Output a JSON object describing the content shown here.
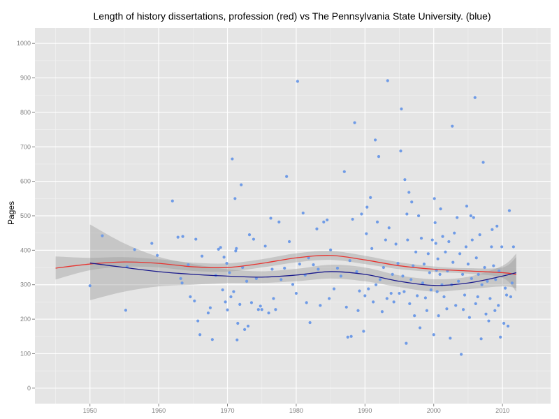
{
  "chart_data": {
    "type": "scatter",
    "title": "Length of history dissertations, profession (red) vs The Pennsylvania State University. (blue)",
    "xlabel": "",
    "ylabel": "Pages",
    "xlim": [
      1942,
      2017
    ],
    "ylim": [
      -45,
      1045
    ],
    "x_ticks": [
      1950,
      1960,
      1970,
      1980,
      1990,
      2000,
      2010
    ],
    "y_ticks": [
      0,
      100,
      200,
      300,
      400,
      500,
      600,
      700,
      800,
      900,
      1000
    ],
    "grid": true,
    "legend": "none",
    "colors": {
      "panel": "#e5e5e5",
      "grid_major": "#ffffff",
      "grid_minor": "#f2f2f2",
      "points": "#6f9be6",
      "profession_line": "#e8332f",
      "psu_line": "#1a1a8c",
      "ribbon": "#999999"
    },
    "scatter_points": [
      [
        1950,
        297
      ],
      [
        1951.8,
        442
      ],
      [
        1955.2,
        226
      ],
      [
        1955.4,
        352
      ],
      [
        1956.5,
        402
      ],
      [
        1959,
        420
      ],
      [
        1959.8,
        385
      ],
      [
        1962,
        543
      ],
      [
        1962.8,
        438
      ],
      [
        1963.2,
        318
      ],
      [
        1963.5,
        440
      ],
      [
        1963.4,
        305
      ],
      [
        1964.3,
        358
      ],
      [
        1964.6,
        265
      ],
      [
        1965.2,
        253
      ],
      [
        1965.4,
        432
      ],
      [
        1965.7,
        195
      ],
      [
        1966,
        155
      ],
      [
        1966.3,
        383
      ],
      [
        1967.2,
        218
      ],
      [
        1967.5,
        233
      ],
      [
        1967.8,
        141
      ],
      [
        1968.3,
        327
      ],
      [
        1968.7,
        403
      ],
      [
        1969,
        408
      ],
      [
        1969.3,
        285
      ],
      [
        1969.5,
        380
      ],
      [
        1969.7,
        250
      ],
      [
        1969.9,
        362
      ],
      [
        1970,
        227
      ],
      [
        1970.3,
        335
      ],
      [
        1970.5,
        265
      ],
      [
        1970.7,
        665
      ],
      [
        1970.9,
        280
      ],
      [
        1971.1,
        550
      ],
      [
        1971.2,
        398
      ],
      [
        1971.3,
        405
      ],
      [
        1971.4,
        140
      ],
      [
        1971.5,
        188
      ],
      [
        1971.8,
        243
      ],
      [
        1972,
        590
      ],
      [
        1972.2,
        350
      ],
      [
        1972.5,
        170
      ],
      [
        1972.8,
        310
      ],
      [
        1973,
        180
      ],
      [
        1973.2,
        445
      ],
      [
        1973.5,
        248
      ],
      [
        1973.8,
        432
      ],
      [
        1974.2,
        318
      ],
      [
        1974.5,
        228
      ],
      [
        1974.8,
        238
      ],
      [
        1975,
        228
      ],
      [
        1975.5,
        412
      ],
      [
        1976,
        218
      ],
      [
        1976.3,
        493
      ],
      [
        1976.5,
        345
      ],
      [
        1976.7,
        260
      ],
      [
        1977,
        228
      ],
      [
        1977.5,
        482
      ],
      [
        1977.8,
        315
      ],
      [
        1978.3,
        348
      ],
      [
        1978.6,
        614
      ],
      [
        1979,
        425
      ],
      [
        1979.5,
        301
      ],
      [
        1980,
        275
      ],
      [
        1980.2,
        890
      ],
      [
        1980.5,
        360
      ],
      [
        1981,
        508
      ],
      [
        1981.3,
        328
      ],
      [
        1981.5,
        248
      ],
      [
        1981.8,
        378
      ],
      [
        1982,
        190
      ],
      [
        1982.5,
        358
      ],
      [
        1983,
        462
      ],
      [
        1983.2,
        345
      ],
      [
        1983.5,
        240
      ],
      [
        1984,
        482
      ],
      [
        1984.5,
        488
      ],
      [
        1984.8,
        260
      ],
      [
        1985,
        401
      ],
      [
        1985.5,
        288
      ],
      [
        1986,
        348
      ],
      [
        1986.5,
        325
      ],
      [
        1987,
        628
      ],
      [
        1987.3,
        235
      ],
      [
        1987.5,
        148
      ],
      [
        1987.8,
        370
      ],
      [
        1988,
        150
      ],
      [
        1988.2,
        490
      ],
      [
        1988.5,
        770
      ],
      [
        1988.8,
        338
      ],
      [
        1989,
        225
      ],
      [
        1989.2,
        282
      ],
      [
        1989.5,
        505
      ],
      [
        1989.8,
        165
      ],
      [
        1990,
        268
      ],
      [
        1990.2,
        448
      ],
      [
        1990.3,
        525
      ],
      [
        1990.5,
        288
      ],
      [
        1990.8,
        553
      ],
      [
        1991,
        405
      ],
      [
        1991.2,
        250
      ],
      [
        1991.5,
        720
      ],
      [
        1991.6,
        300
      ],
      [
        1991.8,
        482
      ],
      [
        1992,
        672
      ],
      [
        1992.2,
        315
      ],
      [
        1992.5,
        222
      ],
      [
        1992.7,
        350
      ],
      [
        1993,
        430
      ],
      [
        1993.2,
        260
      ],
      [
        1993.3,
        892
      ],
      [
        1993.5,
        465
      ],
      [
        1993.8,
        275
      ],
      [
        1994,
        330
      ],
      [
        1994.2,
        250
      ],
      [
        1994.5,
        418
      ],
      [
        1994.8,
        362
      ],
      [
        1995,
        275
      ],
      [
        1995.2,
        688
      ],
      [
        1995.3,
        810
      ],
      [
        1995.5,
        325
      ],
      [
        1995.7,
        280
      ],
      [
        1995.8,
        605
      ],
      [
        1996,
        130
      ],
      [
        1996.1,
        505
      ],
      [
        1996.2,
        430
      ],
      [
        1996.4,
        568
      ],
      [
        1996.5,
        245
      ],
      [
        1996.7,
        315
      ],
      [
        1996.8,
        540
      ],
      [
        1997,
        355
      ],
      [
        1997.2,
        210
      ],
      [
        1997.4,
        395
      ],
      [
        1997.6,
        268
      ],
      [
        1997.8,
        500
      ],
      [
        1998,
        175
      ],
      [
        1998.2,
        435
      ],
      [
        1998.4,
        305
      ],
      [
        1998.6,
        360
      ],
      [
        1998.8,
        262
      ],
      [
        1999,
        225
      ],
      [
        1999.2,
        390
      ],
      [
        1999.4,
        335
      ],
      [
        1999.6,
        285
      ],
      [
        1999.8,
        430
      ],
      [
        2000,
        155
      ],
      [
        2000.1,
        550
      ],
      [
        2000.2,
        480
      ],
      [
        2000.3,
        420
      ],
      [
        2000.4,
        342
      ],
      [
        2000.5,
        280
      ],
      [
        2000.6,
        375
      ],
      [
        2000.7,
        210
      ],
      [
        2000.9,
        330
      ],
      [
        2001,
        520
      ],
      [
        2001.2,
        300
      ],
      [
        2001.3,
        440
      ],
      [
        2001.5,
        265
      ],
      [
        2001.7,
        395
      ],
      [
        2001.9,
        230
      ],
      [
        2002,
        340
      ],
      [
        2002.2,
        425
      ],
      [
        2002.4,
        145
      ],
      [
        2002.6,
        300
      ],
      [
        2002.7,
        760
      ],
      [
        2002.8,
        365
      ],
      [
        2003,
        450
      ],
      [
        2003.2,
        240
      ],
      [
        2003.4,
        495
      ],
      [
        2003.6,
        310
      ],
      [
        2003.8,
        390
      ],
      [
        2004,
        98
      ],
      [
        2004.2,
        330
      ],
      [
        2004.3,
        228
      ],
      [
        2004.5,
        270
      ],
      [
        2004.7,
        410
      ],
      [
        2004.8,
        528
      ],
      [
        2005,
        360
      ],
      [
        2005.2,
        205
      ],
      [
        2005.4,
        500
      ],
      [
        2005.5,
        318
      ],
      [
        2005.6,
        430
      ],
      [
        2005.8,
        495
      ],
      [
        2006,
        843
      ],
      [
        2006.1,
        245
      ],
      [
        2006.2,
        378
      ],
      [
        2006.4,
        265
      ],
      [
        2006.5,
        330
      ],
      [
        2006.7,
        445
      ],
      [
        2006.9,
        143
      ],
      [
        2007,
        300
      ],
      [
        2007.2,
        655
      ],
      [
        2007.4,
        350
      ],
      [
        2007.6,
        215
      ],
      [
        2007.8,
        310
      ],
      [
        2008,
        195
      ],
      [
        2008.2,
        260
      ],
      [
        2008.4,
        410
      ],
      [
        2008.5,
        460
      ],
      [
        2008.7,
        355
      ],
      [
        2008.9,
        225
      ],
      [
        2009,
        315
      ],
      [
        2009.2,
        470
      ],
      [
        2009.4,
        240
      ],
      [
        2009.5,
        340
      ],
      [
        2009.7,
        148
      ],
      [
        2009.9,
        410
      ],
      [
        2010.2,
        188
      ],
      [
        2010.4,
        290
      ],
      [
        2010.6,
        270
      ],
      [
        2010.8,
        180
      ],
      [
        2011,
        515
      ],
      [
        2011.2,
        265
      ],
      [
        2011.4,
        305
      ],
      [
        2011.6,
        410
      ]
    ],
    "series": [
      {
        "x": [
          1945,
          1950,
          1955,
          1960,
          1965,
          1970,
          1975,
          1980,
          1985,
          1990,
          1995,
          2000,
          2005,
          2010,
          2012
        ],
        "values": [
          348,
          360,
          366,
          362,
          352,
          350,
          362,
          378,
          385,
          372,
          355,
          345,
          340,
          335,
          330
        ],
        "ribbon_lower": [
          315,
          342,
          352,
          350,
          340,
          338,
          350,
          365,
          372,
          360,
          345,
          337,
          332,
          320,
          280
        ],
        "ribbon_upper": [
          382,
          378,
          380,
          374,
          364,
          362,
          374,
          391,
          398,
          384,
          365,
          353,
          348,
          350,
          380
        ]
      },
      {
        "x": [
          1950,
          1955,
          1960,
          1965,
          1970,
          1975,
          1980,
          1985,
          1990,
          1995,
          2000,
          2005,
          2010,
          2012
        ],
        "values": [
          363,
          350,
          338,
          330,
          325,
          322,
          328,
          338,
          330,
          310,
          298,
          305,
          325,
          335
        ],
        "ribbon_lower": [
          255,
          280,
          295,
          300,
          305,
          305,
          310,
          318,
          310,
          293,
          280,
          287,
          295,
          290
        ],
        "ribbon_upper": [
          475,
          420,
          381,
          360,
          345,
          339,
          346,
          358,
          350,
          327,
          316,
          323,
          355,
          390
        ]
      }
    ]
  }
}
